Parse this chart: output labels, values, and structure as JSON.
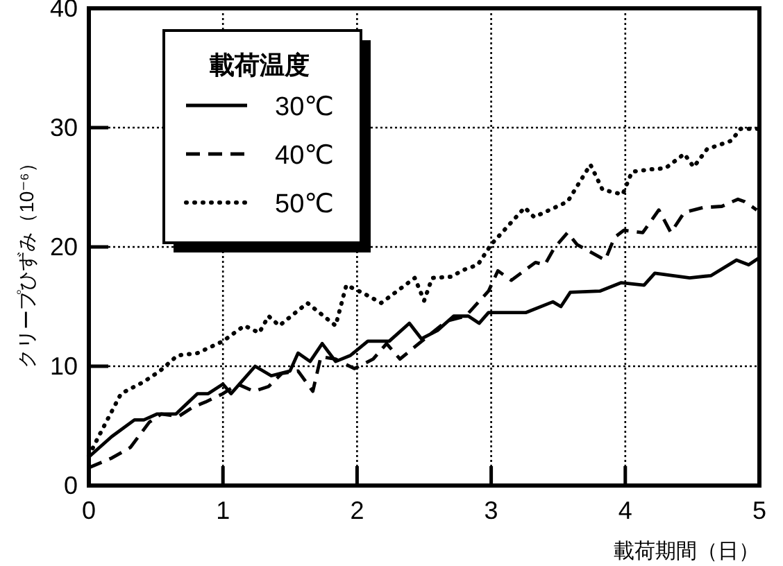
{
  "chart_data": {
    "type": "line",
    "xlabel": "載荷期間（日）",
    "ylabel": "クリープひずみ（10⁻⁶）",
    "legend_title": "載荷温度",
    "xlim": [
      0,
      5
    ],
    "ylim": [
      0,
      40
    ],
    "xticks": [
      0,
      1,
      2,
      3,
      4,
      5
    ],
    "yticks": [
      0,
      10,
      20,
      30,
      40
    ],
    "grid": true,
    "legend": "top left",
    "series": [
      {
        "name": "30℃",
        "color": "#000000",
        "line_style": "solid",
        "x": [
          0,
          0.17,
          0.34,
          0.41,
          0.51,
          0.65,
          0.81,
          0.89,
          1.0,
          1.06,
          1.24,
          1.36,
          1.5,
          1.56,
          1.65,
          1.74,
          1.84,
          1.95,
          2.08,
          2.24,
          2.39,
          2.48,
          2.6,
          2.72,
          2.83,
          2.91,
          2.98,
          3.26,
          3.46,
          3.52,
          3.59,
          3.81,
          3.97,
          4.14,
          4.22,
          4.48,
          4.64,
          4.83,
          4.92,
          5.0
        ],
        "values": [
          2.4,
          4.1,
          5.5,
          5.5,
          6.0,
          6.0,
          7.7,
          7.7,
          8.5,
          7.7,
          10.0,
          9.2,
          9.6,
          11.1,
          10.4,
          11.9,
          10.4,
          10.9,
          12.1,
          12.1,
          13.6,
          12.3,
          13.0,
          14.2,
          14.2,
          13.6,
          14.5,
          14.5,
          15.4,
          15.0,
          16.2,
          16.3,
          17.0,
          16.8,
          17.8,
          17.4,
          17.6,
          18.9,
          18.5,
          19.1
        ]
      },
      {
        "name": "40℃",
        "color": "#000000",
        "line_style": "dashed",
        "x": [
          0,
          0.17,
          0.31,
          0.45,
          0.54,
          0.67,
          0.78,
          0.87,
          1.0,
          1.11,
          1.23,
          1.34,
          1.44,
          1.56,
          1.67,
          1.73,
          1.84,
          1.98,
          2.12,
          2.22,
          2.32,
          2.46,
          2.67,
          2.81,
          2.98,
          3.05,
          3.15,
          3.33,
          3.4,
          3.47,
          3.57,
          3.64,
          3.85,
          3.92,
          3.99,
          4.13,
          4.25,
          4.34,
          4.44,
          4.58,
          4.72,
          4.84,
          4.89,
          4.98
        ],
        "values": [
          1.5,
          2.3,
          3.2,
          5.3,
          6.0,
          5.8,
          6.6,
          7.0,
          7.7,
          8.5,
          7.9,
          8.3,
          9.4,
          9.6,
          7.9,
          10.8,
          10.6,
          9.8,
          10.6,
          11.9,
          10.6,
          11.9,
          13.8,
          14.2,
          16.3,
          18.0,
          17.2,
          18.7,
          18.5,
          19.9,
          21.2,
          20.2,
          18.9,
          20.8,
          21.4,
          21.2,
          23.1,
          21.2,
          22.9,
          23.3,
          23.4,
          24.0,
          23.8,
          23.1
        ]
      },
      {
        "name": "50℃",
        "color": "#000000",
        "line_style": "dotted",
        "x": [
          0,
          0.1,
          0.24,
          0.41,
          0.53,
          0.66,
          0.81,
          1.0,
          1.16,
          1.27,
          1.34,
          1.42,
          1.63,
          1.84,
          1.92,
          2.05,
          2.18,
          2.43,
          2.5,
          2.56,
          2.7,
          2.8,
          2.9,
          3.0,
          3.25,
          3.32,
          3.57,
          3.74,
          3.83,
          3.98,
          4.05,
          4.19,
          4.3,
          4.44,
          4.51,
          4.61,
          4.79,
          4.86,
          5.0
        ],
        "values": [
          2.5,
          4.7,
          7.7,
          8.7,
          9.6,
          10.9,
          11.1,
          12.1,
          13.4,
          12.8,
          14.2,
          13.4,
          15.3,
          13.4,
          16.8,
          16.1,
          15.3,
          17.4,
          15.5,
          17.4,
          17.5,
          18.1,
          18.5,
          20.2,
          23.3,
          22.5,
          23.8,
          26.9,
          24.8,
          24.4,
          26.3,
          26.5,
          26.6,
          27.8,
          26.7,
          28.2,
          28.9,
          29.9,
          29.9
        ]
      }
    ]
  }
}
